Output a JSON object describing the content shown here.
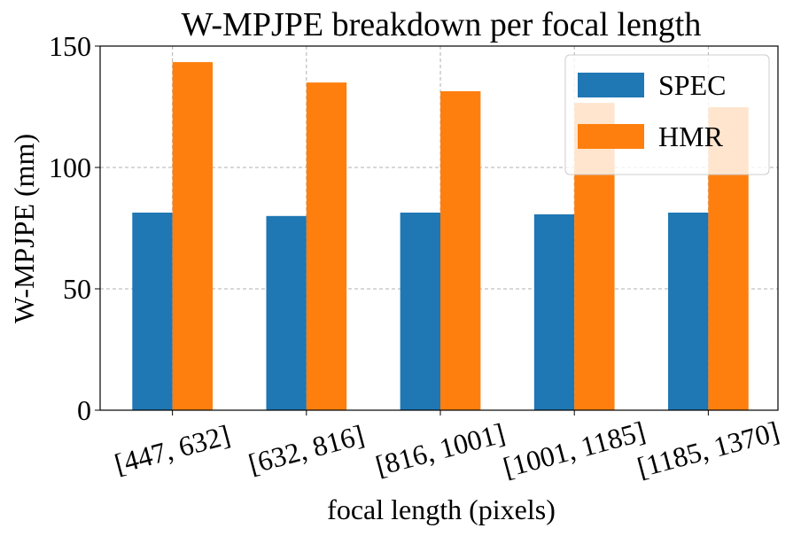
{
  "chart_data": {
    "type": "bar",
    "title": "W-MPJPE breakdown per focal length",
    "x_label": "focal length (pixels)",
    "y_label": "W-MPJPE (mm)",
    "categories": [
      "[447, 632]",
      "[632, 816]",
      "[816, 1001]",
      "[1001, 1185]",
      "[1185, 1370]"
    ],
    "series": [
      {
        "name": "SPEC",
        "color": "#1f77b4",
        "values": [
          81.4,
          80,
          81.4,
          80.7,
          81.4
        ]
      },
      {
        "name": "HMR",
        "color": "#ff7f0e",
        "values": [
          143.4,
          135,
          131.4,
          126.6,
          124.8
        ]
      }
    ],
    "ylim": [
      0,
      150
    ],
    "yticks": [
      0,
      50,
      100,
      150
    ],
    "grid": true,
    "legend": "upper right"
  }
}
